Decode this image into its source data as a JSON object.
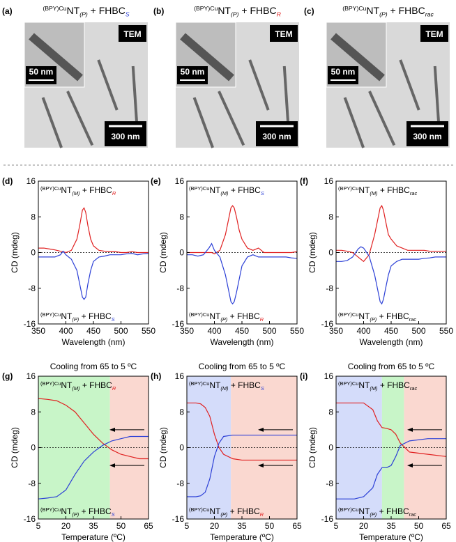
{
  "tem_panels": [
    {
      "label": "(a)",
      "caption": {
        "sup": "(BPY)Cu",
        "main": "NT",
        "sub": "(P)",
        "main2": " + FHBC",
        "sub2": "S",
        "sub2_color": "#2b3fd6"
      },
      "badge": "TEM",
      "inset_scale": "50 nm",
      "scale": "300 nm"
    },
    {
      "label": "(b)",
      "caption": {
        "sup": "(BPY)Cu",
        "main": "NT",
        "sub": "(P)",
        "main2": " + FHBC",
        "sub2": "R",
        "sub2_color": "#e02020"
      },
      "badge": "TEM",
      "inset_scale": "50 nm",
      "scale": "300 nm"
    },
    {
      "label": "(c)",
      "caption": {
        "sup": "(BPY)Cu",
        "main": "NT",
        "sub": "(P)",
        "main2": " + FHBC",
        "sub2": "rac",
        "sub2_color": "#000000"
      },
      "badge": "TEM",
      "inset_scale": "50 nm",
      "scale": "300 nm"
    }
  ],
  "chart_data": [
    {
      "type": "line",
      "panel_label": "(d)",
      "xlabel": "Wavelength (nm)",
      "ylabel": "CD (mdeg)",
      "xlim": [
        350,
        550
      ],
      "xticks": [
        350,
        400,
        450,
        500,
        550
      ],
      "ylim": [
        -16,
        16
      ],
      "yticks": [
        -16,
        -8,
        0,
        8,
        16
      ],
      "zero_line": true,
      "x": [
        350,
        360,
        370,
        380,
        390,
        395,
        400,
        410,
        420,
        425,
        430,
        433,
        436,
        440,
        445,
        450,
        460,
        470,
        480,
        490,
        500,
        510,
        520,
        530,
        540,
        550
      ],
      "series": [
        {
          "color": "#e02020",
          "values": [
            1,
            1,
            0.8,
            0.6,
            0.3,
            0.2,
            0,
            0.5,
            3,
            6,
            9.5,
            10,
            9,
            6,
            3,
            1.5,
            0.5,
            0.3,
            0.2,
            0.2,
            0,
            0,
            0.2,
            0,
            0,
            0
          ]
        },
        {
          "color": "#2b3fd6",
          "values": [
            -1,
            -1,
            -1,
            -1,
            -0.5,
            0.3,
            -0.5,
            -1.5,
            -4,
            -7,
            -10,
            -10.5,
            -10,
            -7,
            -4,
            -2,
            -1,
            -0.8,
            -0.5,
            -0.5,
            -0.5,
            -0.3,
            -0.2,
            -0.5,
            -0.3,
            -0.2
          ]
        }
      ],
      "annotations": [
        {
          "sup": "(BPY)Cu",
          "main": "NT",
          "sub": "(M)",
          "main2": " + FHBC",
          "sub2": "R",
          "sub2_color": "#e02020",
          "position": "top"
        },
        {
          "sup": "(BPY)Cu",
          "main": "NT",
          "sub": "(P)",
          "main2": " + FHBC",
          "sub2": "S",
          "sub2_color": "#2b3fd6",
          "position": "bottom"
        }
      ]
    },
    {
      "type": "line",
      "panel_label": "(e)",
      "xlabel": "Wavelength (nm)",
      "ylabel": "CD (mdeg)",
      "xlim": [
        350,
        550
      ],
      "xticks": [
        350,
        400,
        450,
        500,
        550
      ],
      "ylim": [
        -16,
        16
      ],
      "yticks": [
        -16,
        -8,
        0,
        8,
        16
      ],
      "zero_line": true,
      "x": [
        350,
        360,
        370,
        380,
        390,
        395,
        400,
        410,
        420,
        425,
        430,
        433,
        436,
        440,
        445,
        450,
        460,
        470,
        480,
        490,
        500,
        510,
        520,
        530,
        540,
        550
      ],
      "series": [
        {
          "color": "#e02020",
          "values": [
            0,
            0,
            0,
            0,
            0,
            0,
            -0.3,
            0.5,
            4,
            7,
            10,
            10.5,
            10,
            8,
            5,
            3,
            1,
            0.5,
            1,
            0,
            0,
            0,
            0,
            0,
            0,
            0.2
          ]
        },
        {
          "color": "#2b3fd6",
          "values": [
            -0.5,
            -0.5,
            -0.8,
            -0.5,
            1,
            2,
            0.5,
            -1,
            -5,
            -8,
            -11,
            -11.5,
            -11,
            -9,
            -6,
            -3,
            -1,
            -0.5,
            -1,
            -1,
            -1,
            -1,
            -1,
            -1,
            -1.2,
            -1.3
          ]
        }
      ],
      "annotations": [
        {
          "sup": "(BPY)Cu",
          "main": "NT",
          "sub": "(M)",
          "main2": " + FHBC",
          "sub2": "S",
          "sub2_color": "#2b3fd6",
          "position": "top"
        },
        {
          "sup": "(BPY)Cu",
          "main": "NT",
          "sub": "(P)",
          "main2": " + FHBC",
          "sub2": "R",
          "sub2_color": "#e02020",
          "position": "bottom"
        }
      ]
    },
    {
      "type": "line",
      "panel_label": "(f)",
      "xlabel": "Wavelength (nm)",
      "ylabel": "CD (mdeg)",
      "xlim": [
        350,
        550
      ],
      "xticks": [
        350,
        400,
        450,
        500,
        550
      ],
      "ylim": [
        -16,
        16
      ],
      "yticks": [
        -16,
        -8,
        0,
        8,
        16
      ],
      "zero_line": true,
      "x": [
        350,
        360,
        370,
        380,
        390,
        395,
        400,
        410,
        420,
        425,
        430,
        433,
        436,
        440,
        445,
        450,
        460,
        470,
        480,
        490,
        500,
        510,
        520,
        530,
        540,
        550
      ],
      "series": [
        {
          "color": "#e02020",
          "values": [
            0.5,
            0.5,
            0.3,
            0,
            -1,
            -1.5,
            -2,
            -0.5,
            4,
            7,
            10,
            10.5,
            9.5,
            7,
            4,
            3,
            1.5,
            1,
            0.5,
            0.5,
            0.5,
            0.5,
            0.3,
            0.3,
            0.3,
            0.3
          ]
        },
        {
          "color": "#2b3fd6",
          "values": [
            -2,
            -2,
            -1.8,
            -1,
            0.8,
            1.3,
            1,
            -0.8,
            -5,
            -8,
            -11,
            -11.5,
            -10.5,
            -8,
            -5,
            -3,
            -2,
            -1.5,
            -1.5,
            -1.5,
            -1.5,
            -1.3,
            -1.2,
            -1,
            -1,
            -1
          ]
        }
      ],
      "annotations": [
        {
          "sup": "(BPY)Cu",
          "main": "NT",
          "sub": "(M)",
          "main2": " + FHBC",
          "sub2": "rac",
          "sub2_color": "#000000",
          "position": "top"
        },
        {
          "sup": "(BPY)Cu",
          "main": "NT",
          "sub": "(P)",
          "main2": " + FHBC",
          "sub2": "rac",
          "sub2_color": "#000000",
          "position": "bottom"
        }
      ]
    },
    {
      "type": "line",
      "panel_label": "(g)",
      "title": "Cooling from 65 to 5 ºC",
      "xlabel": "Temperature (ºC)",
      "ylabel": "CD (mdeg)",
      "xlim": [
        5,
        65
      ],
      "xticks": [
        5,
        20,
        35,
        50,
        65
      ],
      "ylim": [
        -16,
        16
      ],
      "yticks": [
        -16,
        -8,
        0,
        8,
        16
      ],
      "zero_line": true,
      "regions": [
        {
          "from": 5,
          "to": 44,
          "color": "#c8f5c8"
        },
        {
          "from": 44,
          "to": 65,
          "color": "#fad8d0"
        }
      ],
      "x": [
        5,
        10,
        15,
        20,
        25,
        30,
        35,
        40,
        45,
        50,
        55,
        60,
        65
      ],
      "series": [
        {
          "color": "#e02020",
          "values": [
            11,
            10.8,
            10.5,
            9.5,
            8,
            5.5,
            3,
            1,
            -0.5,
            -1.5,
            -2,
            -2.5,
            -2.5
          ]
        },
        {
          "color": "#2b3fd6",
          "values": [
            -11.5,
            -11.3,
            -11,
            -9.5,
            -6,
            -3,
            -1,
            0.5,
            1.5,
            2,
            2.5,
            2.5,
            2.5
          ]
        }
      ],
      "annotations": [
        {
          "sup": "(BPY)Cu",
          "main": "NT",
          "sub": "(M)",
          "main2": " + FHBC",
          "sub2": "R",
          "sub2_color": "#e02020",
          "position": "top"
        },
        {
          "sup": "(BPY)Cu",
          "main": "NT",
          "sub": "(P)",
          "main2": " + FHBC",
          "sub2": "S",
          "sub2_color": "#2b3fd6",
          "position": "bottom"
        }
      ]
    },
    {
      "type": "line",
      "panel_label": "(h)",
      "title": "Cooling from 65 to 5 ºC",
      "xlabel": "Temperature (ºC)",
      "ylabel": "CD (mdeg)",
      "xlim": [
        5,
        65
      ],
      "xticks": [
        5,
        20,
        35,
        50,
        65
      ],
      "ylim": [
        -16,
        16
      ],
      "yticks": [
        -16,
        -8,
        0,
        8,
        16
      ],
      "zero_line": true,
      "regions": [
        {
          "from": 5,
          "to": 29,
          "color": "#d4dcfa"
        },
        {
          "from": 29,
          "to": 65,
          "color": "#fad8d0"
        }
      ],
      "x": [
        5,
        10,
        12.5,
        15,
        17.5,
        20,
        22.5,
        25,
        30,
        35,
        45,
        55,
        65
      ],
      "series": [
        {
          "color": "#e02020",
          "values": [
            10,
            10,
            9.8,
            9,
            7,
            3,
            0,
            -1.5,
            -2.5,
            -2.8,
            -2.8,
            -2.8,
            -2.8
          ]
        },
        {
          "color": "#2b3fd6",
          "values": [
            -11,
            -11,
            -10.8,
            -10,
            -7,
            -2,
            1,
            2.5,
            2.8,
            2.8,
            2.8,
            2.8,
            2.8
          ]
        }
      ],
      "annotations": [
        {
          "sup": "(BPY)Cu",
          "main": "NT",
          "sub": "(M)",
          "main2": " + FHBC",
          "sub2": "S",
          "sub2_color": "#2b3fd6",
          "position": "top"
        },
        {
          "sup": "(BPY)Cu",
          "main": "NT",
          "sub": "(P)",
          "main2": " + FHBC",
          "sub2": "R",
          "sub2_color": "#e02020",
          "position": "bottom"
        }
      ]
    },
    {
      "type": "line",
      "panel_label": "(i)",
      "title": "Cooling from 65 to 5 ºC",
      "xlabel": "Temperature (ºC)",
      "ylabel": "CD (mdeg)",
      "xlim": [
        5,
        65
      ],
      "xticks": [
        5,
        20,
        35,
        50,
        65
      ],
      "ylim": [
        -16,
        16
      ],
      "yticks": [
        -16,
        -8,
        0,
        8,
        16
      ],
      "zero_line": true,
      "regions": [
        {
          "from": 5,
          "to": 30,
          "color": "#d4dcfa"
        },
        {
          "from": 30,
          "to": 42,
          "color": "#c8f5c8"
        },
        {
          "from": 42,
          "to": 65,
          "color": "#fad8d0"
        }
      ],
      "x": [
        5,
        10,
        15,
        20,
        25,
        27.5,
        30,
        32.5,
        35,
        37.5,
        40,
        45,
        55,
        65
      ],
      "series": [
        {
          "color": "#e02020",
          "values": [
            10,
            10,
            10,
            10,
            8.5,
            6,
            4.5,
            4.3,
            4,
            3,
            1,
            -1,
            -1.5,
            -2
          ]
        },
        {
          "color": "#2b3fd6",
          "values": [
            -11.5,
            -11.5,
            -11.5,
            -11,
            -9,
            -6,
            -4.5,
            -4.5,
            -4,
            -2,
            0.5,
            1.5,
            2,
            2
          ]
        }
      ],
      "annotations": [
        {
          "sup": "(BPY)Cu",
          "main": "NT",
          "sub": "(M)",
          "main2": " + FHBC",
          "sub2": "rac",
          "sub2_color": "#000000",
          "position": "top"
        },
        {
          "sup": "(BPY)Cu",
          "main": "NT",
          "sub": "(P)",
          "main2": " + FHBC",
          "sub2": "rac",
          "sub2_color": "#000000",
          "position": "bottom"
        }
      ]
    }
  ]
}
